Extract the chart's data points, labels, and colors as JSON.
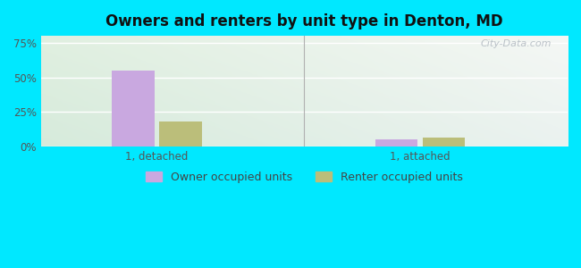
{
  "title": "Owners and renters by unit type in Denton, MD",
  "categories": [
    "1, detached",
    "1, attached"
  ],
  "owner_values": [
    55.0,
    5.5
  ],
  "renter_values": [
    18.0,
    6.5
  ],
  "owner_color": "#c9a8e0",
  "renter_color": "#bbbe7a",
  "yticks": [
    0,
    25,
    50,
    75
  ],
  "ytick_labels": [
    "0%",
    "25%",
    "50%",
    "75%"
  ],
  "ylim": [
    0,
    80
  ],
  "background_outer": "#00e8ff",
  "watermark": "City-Data.com",
  "legend_owner": "Owner occupied units",
  "legend_renter": "Renter occupied units",
  "bar_width": 0.08,
  "group_centers": [
    0.22,
    0.72
  ]
}
